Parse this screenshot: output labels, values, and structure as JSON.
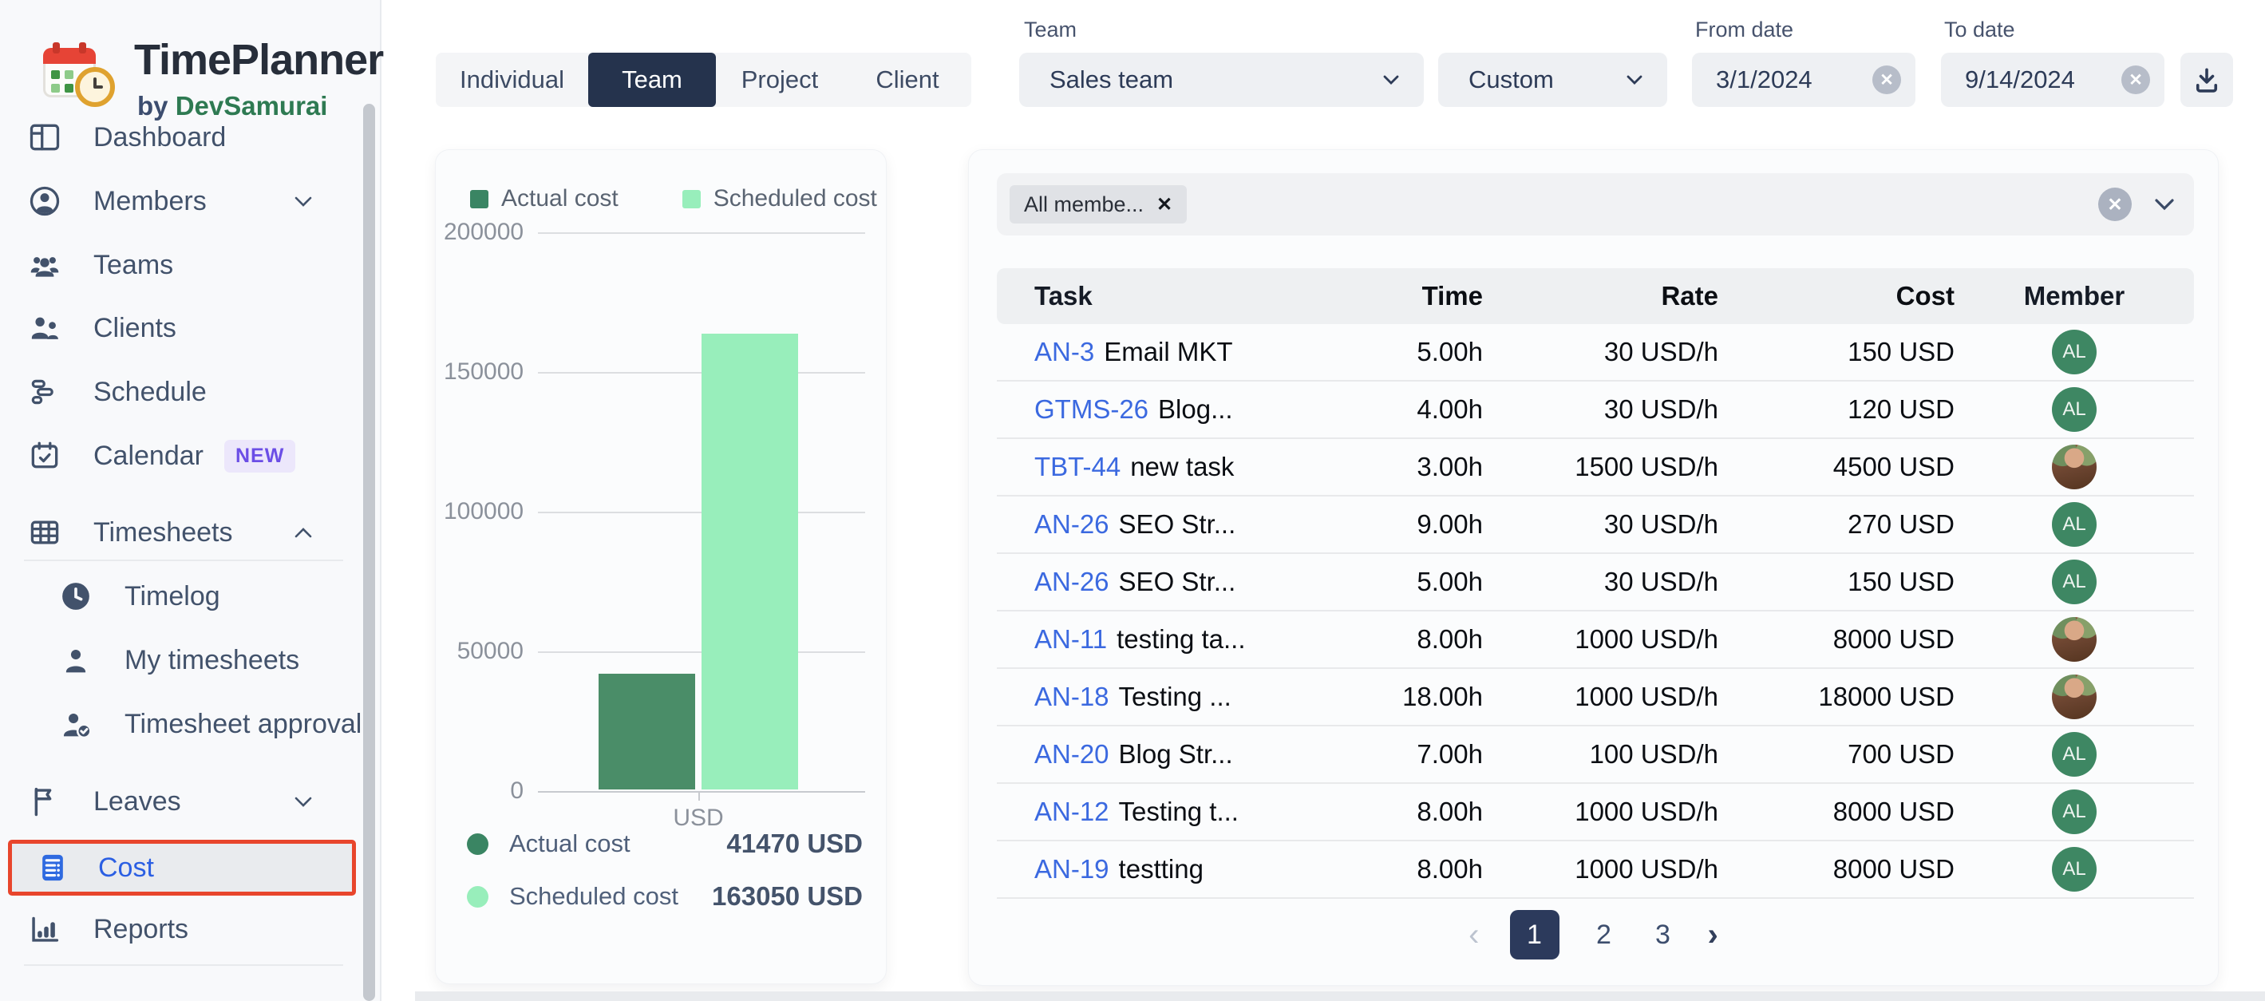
{
  "app": {
    "title": "TimePlanner",
    "byline_prefix": "by",
    "byline_brand": "DevSamurai"
  },
  "colors": {
    "accent_navy": "#25334d",
    "actual_green": "#4a8d68",
    "scheduled_green": "#98eebb",
    "link_blue": "#3b69e0",
    "highlight_red": "#e8452c",
    "sidebar_icon": "#42526b"
  },
  "sidebar": {
    "items": [
      {
        "label": "Dashboard",
        "icon": "dashboard-icon"
      },
      {
        "label": "Members",
        "icon": "members-icon",
        "chevron": "down"
      },
      {
        "label": "Teams",
        "icon": "teams-icon"
      },
      {
        "label": "Clients",
        "icon": "clients-icon"
      },
      {
        "label": "Schedule",
        "icon": "schedule-icon"
      },
      {
        "label": "Calendar",
        "icon": "calendar-icon",
        "badge": "NEW"
      },
      {
        "label": "Timesheets",
        "icon": "timesheets-icon",
        "chevron": "up"
      },
      {
        "label": "Timelog",
        "icon": "timelog-icon",
        "sub": true
      },
      {
        "label": "My timesheets",
        "icon": "my-timesheets-icon",
        "sub": true
      },
      {
        "label": "Timesheet approval",
        "icon": "timesheet-approval-icon",
        "sub": true
      },
      {
        "label": "Leaves",
        "icon": "leaves-icon",
        "chevron": "down"
      },
      {
        "label": "Cost",
        "icon": "cost-icon",
        "active": true
      },
      {
        "label": "Reports",
        "icon": "reports-icon"
      }
    ]
  },
  "tabs": {
    "items": [
      {
        "label": "Individual"
      },
      {
        "label": "Team",
        "active": true
      },
      {
        "label": "Project"
      },
      {
        "label": "Client"
      }
    ]
  },
  "filters": {
    "team_label": "Team",
    "team_value": "Sales team",
    "range_value": "Custom",
    "from_label": "From date",
    "from_value": "3/1/2024",
    "to_label": "To date",
    "to_value": "9/14/2024"
  },
  "chart_data": {
    "type": "bar",
    "categories": [
      "USD"
    ],
    "series": [
      {
        "name": "Actual cost",
        "value": 41470,
        "color": "#4a8d68"
      },
      {
        "name": "Scheduled cost",
        "value": 163050,
        "color": "#98eebb"
      }
    ],
    "title": "",
    "xlabel": "USD",
    "ylabel": "",
    "ylim": [
      0,
      200000
    ],
    "yticks": [
      "200000",
      "150000",
      "100000",
      "50000",
      "0"
    ],
    "grid": true,
    "legend_position": "top",
    "legend": [
      "Actual cost",
      "Scheduled cost"
    ],
    "summary": [
      {
        "label": "Actual cost",
        "value": "41470 USD"
      },
      {
        "label": "Scheduled cost",
        "value": "163050 USD"
      }
    ]
  },
  "table": {
    "filter_chip": "All membe...",
    "headers": [
      "Task",
      "Time",
      "Rate",
      "Cost",
      "Member"
    ],
    "rows": [
      {
        "id": "AN-3",
        "name": "Email MKT",
        "time": "5.00h",
        "rate": "30 USD/h",
        "cost": "150 USD",
        "member": "AL",
        "member_type": "initials"
      },
      {
        "id": "GTMS-26",
        "name": "Blog...",
        "time": "4.00h",
        "rate": "30 USD/h",
        "cost": "120 USD",
        "member": "AL",
        "member_type": "initials"
      },
      {
        "id": "TBT-44",
        "name": "new task",
        "time": "3.00h",
        "rate": "1500 USD/h",
        "cost": "4500 USD",
        "member": "",
        "member_type": "photo"
      },
      {
        "id": "AN-26",
        "name": "SEO Str...",
        "time": "9.00h",
        "rate": "30 USD/h",
        "cost": "270 USD",
        "member": "AL",
        "member_type": "initials"
      },
      {
        "id": "AN-26",
        "name": "SEO Str...",
        "time": "5.00h",
        "rate": "30 USD/h",
        "cost": "150 USD",
        "member": "AL",
        "member_type": "initials"
      },
      {
        "id": "AN-11",
        "name": "testing ta...",
        "time": "8.00h",
        "rate": "1000 USD/h",
        "cost": "8000 USD",
        "member": "",
        "member_type": "photo"
      },
      {
        "id": "AN-18",
        "name": "Testing ...",
        "time": "18.00h",
        "rate": "1000 USD/h",
        "cost": "18000 USD",
        "member": "",
        "member_type": "photo"
      },
      {
        "id": "AN-20",
        "name": "Blog Str...",
        "time": "7.00h",
        "rate": "100 USD/h",
        "cost": "700 USD",
        "member": "AL",
        "member_type": "initials"
      },
      {
        "id": "AN-12",
        "name": "Testing t...",
        "time": "8.00h",
        "rate": "1000 USD/h",
        "cost": "8000 USD",
        "member": "AL",
        "member_type": "initials"
      },
      {
        "id": "AN-19",
        "name": "testting",
        "time": "8.00h",
        "rate": "1000 USD/h",
        "cost": "8000 USD",
        "member": "AL",
        "member_type": "initials"
      }
    ],
    "pagination": {
      "pages": [
        "1",
        "2",
        "3"
      ],
      "active": "1"
    }
  }
}
